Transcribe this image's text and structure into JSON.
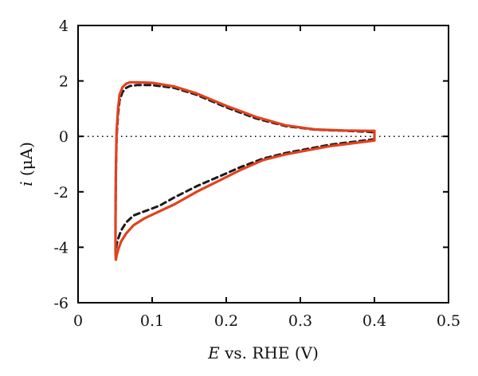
{
  "chart_data": {
    "type": "line",
    "title": "",
    "xlabel": {
      "var": "E",
      "rest": " vs. RHE (V)"
    },
    "ylabel": {
      "var": "i",
      "rest": " (μA)"
    },
    "xlim": [
      0,
      0.5
    ],
    "ylim": [
      -6,
      4
    ],
    "xticks": [
      0,
      0.1,
      0.2,
      0.3,
      0.4,
      0.5
    ],
    "xtick_labels": [
      "0",
      "0.1",
      "0.2",
      "0.3",
      "0.4",
      "0.5"
    ],
    "yticks": [
      -6,
      -4,
      -2,
      0,
      2,
      4
    ],
    "ytick_labels": [
      "-6",
      "-4",
      "-2",
      "0",
      "2",
      "4"
    ],
    "grid": false,
    "legend": "none",
    "reference_line": {
      "y": 0,
      "style": "dotted",
      "color": "#000000"
    },
    "series": [
      {
        "style": "dashed",
        "color": "#1a1a1a",
        "x": [
          0.4,
          0.37,
          0.34,
          0.31,
          0.28,
          0.25,
          0.22,
          0.19,
          0.16,
          0.13,
          0.11,
          0.09,
          0.075,
          0.065,
          0.058,
          0.054,
          0.052,
          0.051,
          0.0505,
          0.0505,
          0.051,
          0.052,
          0.054,
          0.056,
          0.06,
          0.065,
          0.07,
          0.08,
          0.1,
          0.13,
          0.16,
          0.2,
          0.24,
          0.28,
          0.32,
          0.36,
          0.39,
          0.4,
          0.4
        ],
        "y": [
          -0.1,
          -0.2,
          -0.3,
          -0.45,
          -0.6,
          -0.8,
          -1.1,
          -1.45,
          -1.8,
          -2.2,
          -2.5,
          -2.7,
          -2.85,
          -3.1,
          -3.4,
          -3.7,
          -3.9,
          -4.1,
          -3.9,
          -3.0,
          -1.5,
          0.0,
          0.8,
          1.3,
          1.6,
          1.75,
          1.82,
          1.85,
          1.85,
          1.75,
          1.5,
          1.05,
          0.65,
          0.37,
          0.24,
          0.2,
          0.17,
          0.15,
          -0.1
        ]
      },
      {
        "style": "solid",
        "color": "#e0421f",
        "x": [
          0.4,
          0.37,
          0.34,
          0.31,
          0.28,
          0.25,
          0.22,
          0.19,
          0.16,
          0.13,
          0.11,
          0.09,
          0.075,
          0.065,
          0.058,
          0.054,
          0.052,
          0.051,
          0.0505,
          0.0505,
          0.051,
          0.052,
          0.054,
          0.056,
          0.06,
          0.065,
          0.07,
          0.08,
          0.1,
          0.13,
          0.16,
          0.2,
          0.24,
          0.28,
          0.32,
          0.36,
          0.39,
          0.4,
          0.4
        ],
        "y": [
          -0.15,
          -0.25,
          -0.35,
          -0.5,
          -0.65,
          -0.85,
          -1.2,
          -1.6,
          -2.0,
          -2.45,
          -2.7,
          -2.95,
          -3.2,
          -3.5,
          -3.8,
          -4.1,
          -4.3,
          -4.45,
          -4.2,
          -3.0,
          -1.3,
          0.2,
          1.0,
          1.5,
          1.78,
          1.9,
          1.95,
          1.95,
          1.93,
          1.8,
          1.55,
          1.1,
          0.7,
          0.4,
          0.25,
          0.21,
          0.2,
          0.2,
          -0.15
        ]
      }
    ]
  }
}
